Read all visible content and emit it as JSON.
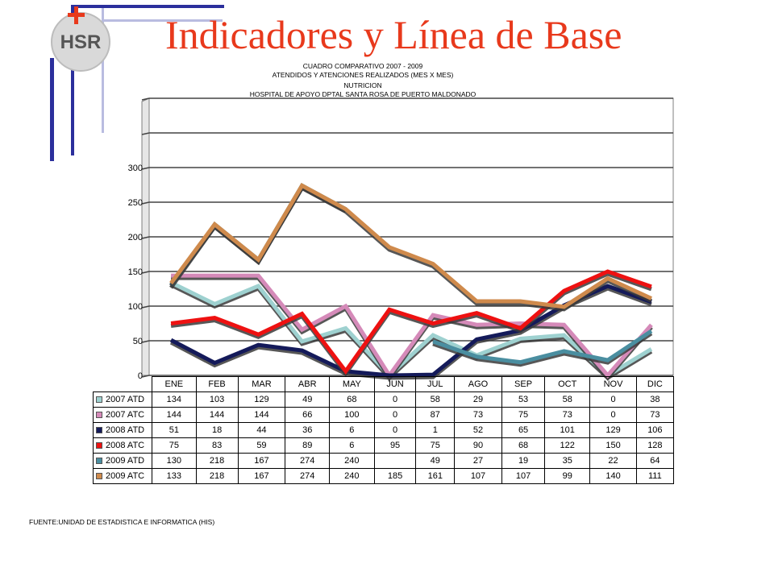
{
  "slide": {
    "title": "Indicadores y Línea de Base",
    "logo_text": "HSR",
    "source": "FUENTE:UNIDAD DE ESTADISTICA E INFORMATICA (HIS)"
  },
  "chart_data": {
    "type": "line",
    "title_lines": [
      "CUADRO COMPARATIVO 2007 - 2009",
      "ATENDIDOS Y ATENCIONES  REALIZADOS (MES X MES)",
      "NUTRICION",
      "HOSPITAL DE APOYO DPTAL SANTA ROSA DE PUERTO MALDONADO"
    ],
    "categories": [
      "ENE",
      "FEB",
      "MAR",
      "ABR",
      "MAY",
      "JUN",
      "JUL",
      "AGO",
      "SEP",
      "OCT",
      "NOV",
      "DIC"
    ],
    "ylim": [
      0,
      400
    ],
    "yticks": [
      0,
      50,
      100,
      150,
      200,
      250,
      300
    ],
    "grid": true,
    "legend": "data table below chart",
    "series": [
      {
        "name": "2007 ATD",
        "color": "#9ed1d0",
        "values": [
          134,
          103,
          129,
          49,
          68,
          0,
          58,
          29,
          53,
          58,
          0,
          38
        ]
      },
      {
        "name": "2007 ATC",
        "color": "#d58ab9",
        "values": [
          144,
          144,
          144,
          66,
          100,
          0,
          87,
          73,
          75,
          73,
          0,
          73
        ]
      },
      {
        "name": "2008 ATD",
        "color": "#141a5a",
        "values": [
          51,
          18,
          44,
          36,
          6,
          0,
          1,
          52,
          65,
          101,
          129,
          106
        ]
      },
      {
        "name": "2008 ATC",
        "color": "#ee1111",
        "values": [
          75,
          83,
          59,
          89,
          6,
          95,
          75,
          90,
          68,
          122,
          150,
          128
        ]
      },
      {
        "name": "2009 ATD",
        "color": "#4a8ea0",
        "values": [
          130,
          218,
          167,
          274,
          240,
          null,
          49,
          27,
          19,
          35,
          22,
          64
        ]
      },
      {
        "name": "2009 ATC",
        "color": "#cf8a4c",
        "values": [
          133,
          218,
          167,
          274,
          240,
          185,
          161,
          107,
          107,
          99,
          140,
          111
        ]
      }
    ]
  },
  "table": {
    "rows": [
      {
        "label": "2007 ATD",
        "cells": [
          "134",
          "103",
          "129",
          "49",
          "68",
          "0",
          "58",
          "29",
          "53",
          "58",
          "0",
          "38"
        ]
      },
      {
        "label": "2007 ATC",
        "cells": [
          "144",
          "144",
          "144",
          "66",
          "100",
          "0",
          "87",
          "73",
          "75",
          "73",
          "0",
          "73"
        ]
      },
      {
        "label": "2008 ATD",
        "cells": [
          "51",
          "18",
          "44",
          "36",
          "6",
          "0",
          "1",
          "52",
          "65",
          "101",
          "129",
          "106"
        ]
      },
      {
        "label": "2008 ATC",
        "cells": [
          "75",
          "83",
          "59",
          "89",
          "6",
          "95",
          "75",
          "90",
          "68",
          "122",
          "150",
          "128"
        ]
      },
      {
        "label": "2009 ATD",
        "cells": [
          "130",
          "218",
          "167",
          "274",
          "240",
          "",
          "49",
          "27",
          "19",
          "35",
          "22",
          "64"
        ]
      },
      {
        "label": "2009 ATC",
        "cells": [
          "133",
          "218",
          "167",
          "274",
          "240",
          "185",
          "161",
          "107",
          "107",
          "99",
          "140",
          "111"
        ]
      }
    ]
  }
}
